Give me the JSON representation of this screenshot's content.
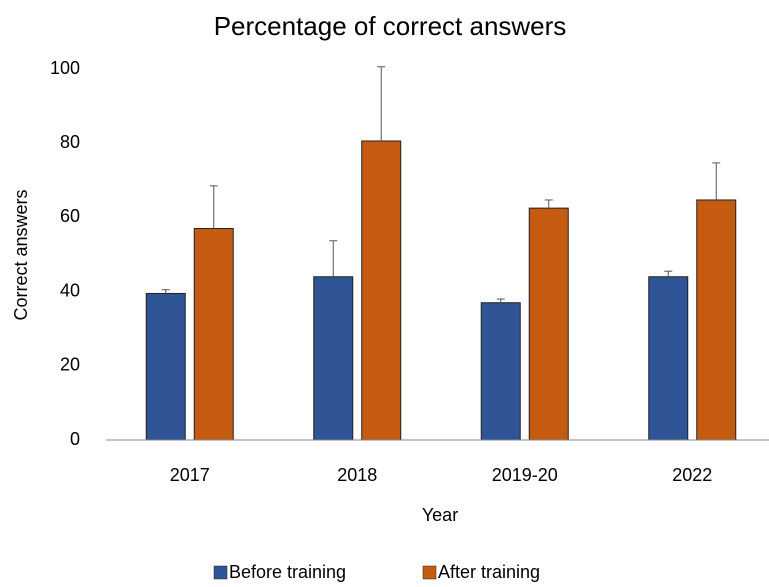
{
  "chart_data": {
    "type": "bar",
    "title": "Percentage of correct answers",
    "x_label": "Year",
    "y_label": "Correct answers",
    "categories": [
      "2017",
      "2018",
      "2019-20",
      "2022"
    ],
    "series": [
      {
        "name": "Before training",
        "color": "#2f5597",
        "values": [
          39.5,
          44,
          37,
          44
        ],
        "errors": [
          1,
          9.7,
          1,
          1.5
        ]
      },
      {
        "name": "After training",
        "color": "#c55a11",
        "values": [
          57,
          80.6,
          62.5,
          64.7
        ],
        "errors": [
          11.5,
          20,
          2.2,
          10
        ]
      }
    ],
    "ylim": [
      0,
      100
    ],
    "yticks": [
      0,
      20,
      40,
      60,
      80,
      100
    ],
    "grid": false,
    "legend": "bottom"
  }
}
